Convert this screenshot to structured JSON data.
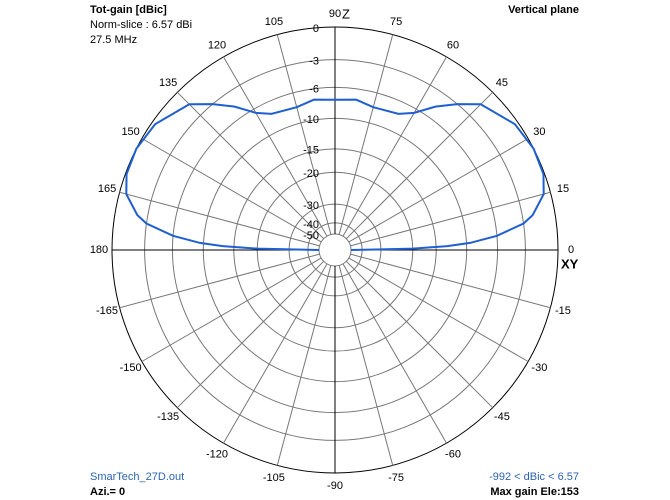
{
  "chart_data": {
    "type": "polar",
    "title": "Tot-gain [dBic]",
    "subtitle": [
      "Norm-slice : 6.57 dBi",
      "27.5 MHz"
    ],
    "plane_label": "Vertical plane",
    "file_label": "SmarTech_27D.out",
    "azimuth_label": "Azi.= 0",
    "range_label": "-992 < dBic < 6.57",
    "max_gain_label": "Max gain Ele:153",
    "axis_labels": {
      "z": "Z",
      "xy": "XY"
    },
    "color": "#1f5fcf",
    "grid": true,
    "x": [
      0,
      1,
      2,
      3,
      5,
      8,
      10,
      15,
      20,
      27,
      35,
      45,
      50,
      55,
      60,
      65,
      75,
      82,
      90,
      98,
      105,
      115,
      120,
      125,
      130,
      135,
      145,
      153,
      160,
      165,
      170,
      172,
      175,
      177,
      178,
      179,
      180
    ],
    "values": [
      -50,
      -20,
      -13,
      -9.5,
      -6,
      -3,
      -2,
      -0.6,
      -0.1,
      0,
      -0.3,
      -1.5,
      -3,
      -4.6,
      -6.5,
      -7.5,
      -7.8,
      -7.3,
      -7.5,
      -7.3,
      -7.8,
      -7.5,
      -6.5,
      -4.6,
      -3,
      -1.5,
      -0.3,
      0,
      -0.1,
      -0.6,
      -2,
      -3,
      -6,
      -9.5,
      -13,
      -20,
      -50
    ],
    "rlim": [
      -50,
      0
    ],
    "rticks": [
      0,
      -3,
      -6,
      -10,
      -15,
      -20,
      -30,
      -40,
      -50
    ],
    "thetaticks": [
      0,
      15,
      30,
      45,
      60,
      75,
      90,
      105,
      120,
      135,
      150,
      165,
      180,
      -165,
      -150,
      -135,
      -120,
      -105,
      -90,
      -75,
      -60,
      -45,
      -30,
      -15
    ]
  }
}
